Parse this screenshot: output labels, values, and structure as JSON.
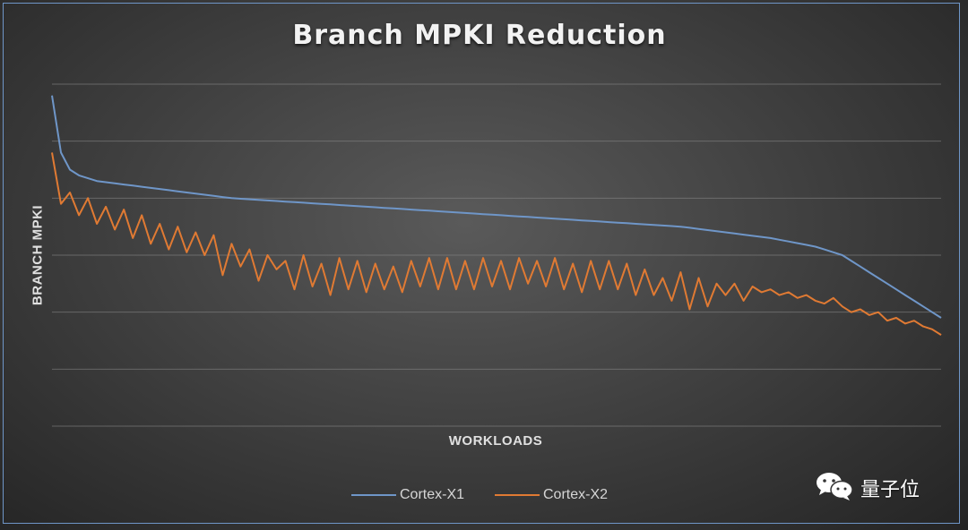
{
  "chart_data": {
    "type": "line",
    "title": "Branch MPKI Reduction",
    "xlabel": "WORKLOADS",
    "ylabel": "BRANCH MPKI",
    "grid": true,
    "legend_position": "bottom",
    "series": [
      {
        "name": "Cortex-X1",
        "color": "#6f96c8",
        "values": [
          5.8,
          4.8,
          4.5,
          4.4,
          4.35,
          4.3,
          4.28,
          4.26,
          4.24,
          4.22,
          4.2,
          4.18,
          4.16,
          4.14,
          4.12,
          4.1,
          4.08,
          4.06,
          4.04,
          4.02,
          4.0,
          3.99,
          3.98,
          3.97,
          3.96,
          3.95,
          3.94,
          3.93,
          3.92,
          3.91,
          3.9,
          3.89,
          3.88,
          3.87,
          3.86,
          3.85,
          3.84,
          3.83,
          3.82,
          3.81,
          3.8,
          3.79,
          3.78,
          3.77,
          3.76,
          3.75,
          3.74,
          3.73,
          3.72,
          3.71,
          3.7,
          3.69,
          3.68,
          3.67,
          3.66,
          3.65,
          3.64,
          3.63,
          3.62,
          3.61,
          3.6,
          3.59,
          3.58,
          3.57,
          3.56,
          3.55,
          3.54,
          3.53,
          3.52,
          3.51,
          3.5,
          3.48,
          3.46,
          3.44,
          3.42,
          3.4,
          3.38,
          3.36,
          3.34,
          3.32,
          3.3,
          3.27,
          3.24,
          3.21,
          3.18,
          3.15,
          3.1,
          3.05,
          3.0,
          2.9,
          2.8,
          2.7,
          2.6,
          2.5,
          2.4,
          2.3,
          2.2,
          2.1,
          2.0,
          1.9
        ]
      },
      {
        "name": "Cortex-X2",
        "color": "#e07a33",
        "values": [
          4.8,
          3.9,
          4.1,
          3.7,
          4.0,
          3.55,
          3.85,
          3.45,
          3.8,
          3.3,
          3.7,
          3.2,
          3.55,
          3.1,
          3.5,
          3.05,
          3.4,
          3.0,
          3.35,
          2.65,
          3.2,
          2.8,
          3.1,
          2.55,
          3.0,
          2.75,
          2.9,
          2.4,
          3.0,
          2.45,
          2.85,
          2.3,
          2.95,
          2.4,
          2.9,
          2.35,
          2.85,
          2.4,
          2.8,
          2.35,
          2.9,
          2.45,
          2.95,
          2.4,
          2.95,
          2.4,
          2.9,
          2.4,
          2.95,
          2.45,
          2.9,
          2.4,
          2.95,
          2.5,
          2.9,
          2.45,
          2.95,
          2.4,
          2.85,
          2.35,
          2.9,
          2.4,
          2.9,
          2.4,
          2.85,
          2.3,
          2.75,
          2.3,
          2.6,
          2.2,
          2.7,
          2.05,
          2.6,
          2.1,
          2.5,
          2.3,
          2.5,
          2.2,
          2.45,
          2.35,
          2.4,
          2.3,
          2.35,
          2.25,
          2.3,
          2.2,
          2.15,
          2.25,
          2.1,
          2.0,
          2.05,
          1.95,
          2.0,
          1.85,
          1.9,
          1.8,
          1.85,
          1.75,
          1.7,
          1.6
        ]
      }
    ]
  },
  "watermark": {
    "text": "量子位",
    "icon": "wechat-icon"
  }
}
